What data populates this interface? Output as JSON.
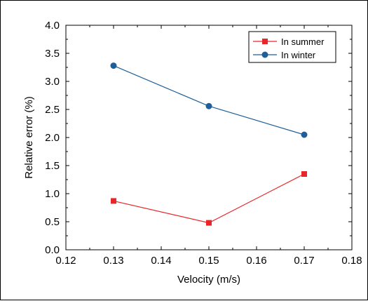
{
  "chart_data": {
    "type": "line",
    "xlabel": "Velocity (m/s)",
    "ylabel": "Relative error (%)",
    "xlim": [
      0.12,
      0.18
    ],
    "ylim": [
      0.0,
      4.0
    ],
    "x_ticks": [
      "0.12",
      "0.13",
      "0.14",
      "0.15",
      "0.16",
      "0.17",
      "0.18"
    ],
    "y_ticks": [
      "0.0",
      "0.5",
      "1.0",
      "1.5",
      "2.0",
      "2.5",
      "3.0",
      "3.5",
      "4.0"
    ],
    "x": [
      0.13,
      0.15,
      0.17
    ],
    "series": [
      {
        "name": "In summer",
        "values": [
          0.87,
          0.48,
          1.35
        ],
        "color": "#e8262a",
        "marker": "square"
      },
      {
        "name": "In winter",
        "values": [
          3.28,
          2.56,
          2.05
        ],
        "color": "#1f5f99",
        "marker": "circle"
      }
    ],
    "legend_position": "top-right",
    "grid": false
  }
}
